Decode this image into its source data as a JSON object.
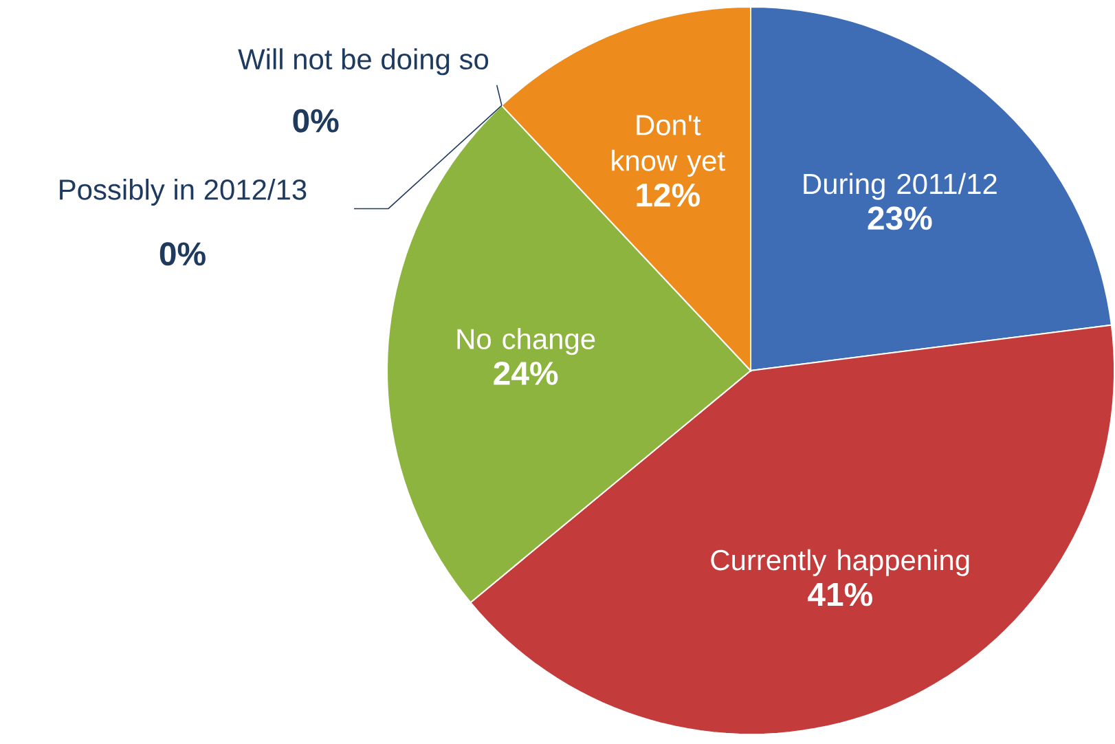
{
  "chart_data": {
    "type": "pie",
    "categories": [
      "During 2011/12",
      "Currently happening",
      "No change",
      "Possibly in 2012/13",
      "Will not be doing so",
      "Don't know yet"
    ],
    "values": [
      23,
      41,
      24,
      0,
      0,
      12
    ],
    "colors": [
      "#3e6db5",
      "#c33b3a",
      "#8cb43f",
      "#7d5fa0",
      "#4bacc6",
      "#ed8b1d"
    ],
    "value_labels": [
      "23%",
      "41%",
      "24%",
      "0%",
      "0%",
      "12%"
    ]
  }
}
